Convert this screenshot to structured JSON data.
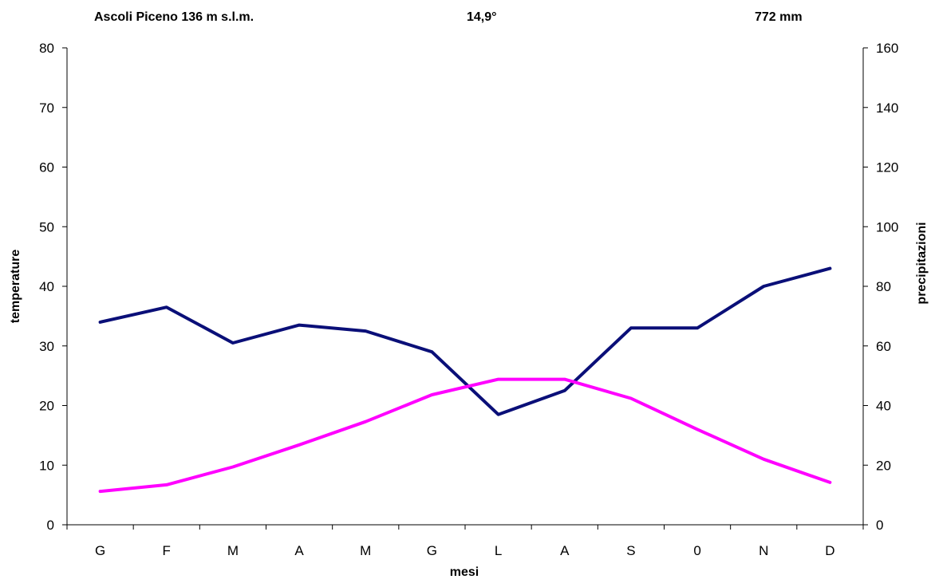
{
  "header": {
    "station": "Ascoli Piceno 136 m s.l.m.",
    "mean_temperature": "14,9°",
    "annual_precipitation": "772 mm"
  },
  "chart_data": {
    "type": "line",
    "title": "Ascoli Piceno 136 m s.l.m.",
    "categories": [
      "G",
      "F",
      "M",
      "A",
      "M",
      "G",
      "L",
      "A",
      "S",
      "0",
      "N",
      "D"
    ],
    "xlabel": "mesi",
    "ylabel": "temperature",
    "ylabel_right": "precipitazioni",
    "ylim": [
      0,
      80
    ],
    "ylim_right": [
      0,
      160
    ],
    "yticks": [
      0,
      10,
      20,
      30,
      40,
      50,
      60,
      70,
      80
    ],
    "yticks_right": [
      0,
      20,
      40,
      60,
      80,
      100,
      120,
      140,
      160
    ],
    "grid": false,
    "legend": "none",
    "series": [
      {
        "axis": "right",
        "color": "#0a0f78",
        "values": [
          68,
          73,
          61,
          67,
          65,
          58,
          37,
          45,
          66,
          66,
          80,
          86
        ]
      },
      {
        "axis": "left",
        "color": "#ff00ff",
        "values": [
          5.6,
          6.7,
          9.7,
          13.4,
          17.3,
          21.8,
          24.4,
          24.4,
          21.2,
          16.0,
          11.0,
          7.1
        ]
      }
    ]
  }
}
